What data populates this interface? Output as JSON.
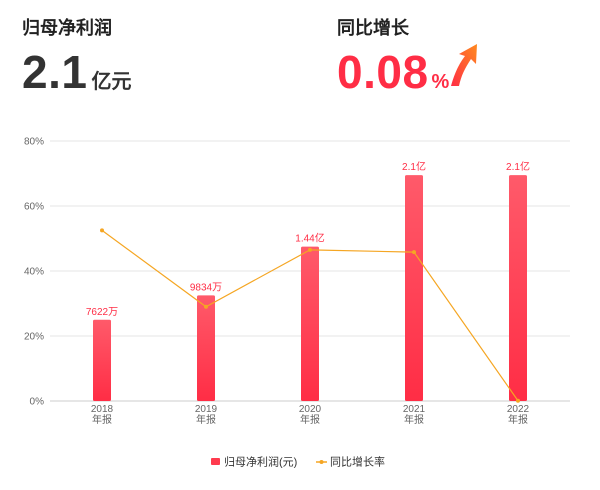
{
  "kpis": {
    "profit": {
      "label": "归母净利润",
      "value": "2.1",
      "unit": "亿元"
    },
    "growth": {
      "label": "同比增长",
      "value": "0.08",
      "unit": "%",
      "icon": "arrow-up-right-icon",
      "color": "#ff2d45"
    }
  },
  "chart_data": {
    "type": "bar",
    "categories": [
      "2018\n年报",
      "2019\n年报",
      "2020\n年报",
      "2021\n年报",
      "2022\n年报"
    ],
    "y_ticks": [
      "0%",
      "20%",
      "40%",
      "60%",
      "80%"
    ],
    "ylim": [
      0,
      80
    ],
    "grid": true,
    "legend_position": "bottom-center",
    "series": [
      {
        "name": "归母净利润(元)",
        "type": "bar",
        "color": "#ff3b4e",
        "values": [
          25,
          32.5,
          47.5,
          69.5,
          69.5
        ],
        "labels": [
          "7622万",
          "9834万",
          "1.44亿",
          "2.1亿",
          "2.1亿"
        ]
      },
      {
        "name": "同比增长率",
        "type": "line",
        "color": "#f5a623",
        "values": [
          52.5,
          29,
          46.5,
          45.8,
          0.08
        ]
      }
    ]
  }
}
